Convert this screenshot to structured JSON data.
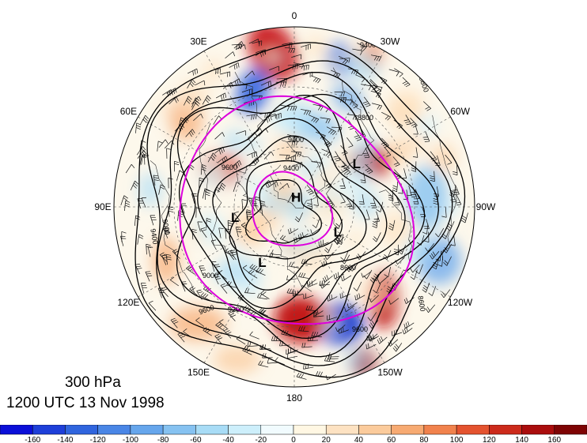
{
  "map": {
    "level": "300 hPa",
    "valid_time": "1200 UTC 13 Nov 1998",
    "longitude_labels": [
      {
        "id": "lon-0",
        "text": "0",
        "angle": 0
      },
      {
        "id": "lon-30w",
        "text": "30W",
        "angle": 30
      },
      {
        "id": "lon-60w",
        "text": "60W",
        "angle": 60
      },
      {
        "id": "lon-90w",
        "text": "90W",
        "angle": 90
      },
      {
        "id": "lon-120w",
        "text": "120W",
        "angle": 120
      },
      {
        "id": "lon-150w",
        "text": "150W",
        "angle": 150
      },
      {
        "id": "lon-180",
        "text": "180",
        "angle": 180
      },
      {
        "id": "lon-150e",
        "text": "150E",
        "angle": 210
      },
      {
        "id": "lon-120e",
        "text": "120E",
        "angle": 240
      },
      {
        "id": "lon-90e",
        "text": "90E",
        "angle": 270
      },
      {
        "id": "lon-60e",
        "text": "60E",
        "angle": 300
      },
      {
        "id": "lon-30e",
        "text": "30E",
        "angle": 330
      }
    ],
    "pressure_systems": [
      {
        "type": "H",
        "lat": 85,
        "lon": -10
      },
      {
        "type": "L",
        "lat": 60,
        "lon": 100
      },
      {
        "type": "L",
        "lat": 58,
        "lon": 150
      },
      {
        "type": "L",
        "lat": 65,
        "lon": -120
      },
      {
        "type": "L",
        "lat": 52,
        "lon": -55
      }
    ],
    "contour_labels": [
      "9600",
      "9400",
      "9200",
      "9000",
      "8800",
      "8600"
    ],
    "colors": {
      "positive": "#c00a0a",
      "negative": "#1e3fd0",
      "jet_ring": "#dd00dd",
      "contour": "#000000"
    }
  },
  "colorbar": {
    "tick_labels": [
      "-160",
      "-140",
      "-120",
      "-100",
      "-80",
      "-60",
      "-40",
      "-20",
      "0",
      "20",
      "40",
      "60",
      "80",
      "100",
      "120",
      "140",
      "160"
    ],
    "colors": [
      "#0b0fd8",
      "#1e3fd9",
      "#3065de",
      "#4a86e6",
      "#66a6ec",
      "#86c2f1",
      "#a8dcf6",
      "#cdeffb",
      "#f1fbfe",
      "#fff7e3",
      "#fde2c2",
      "#fbcb9c",
      "#f7aa72",
      "#f1824d",
      "#e4532f",
      "#cc2a1b",
      "#aa0d0d",
      "#7e0404"
    ]
  }
}
